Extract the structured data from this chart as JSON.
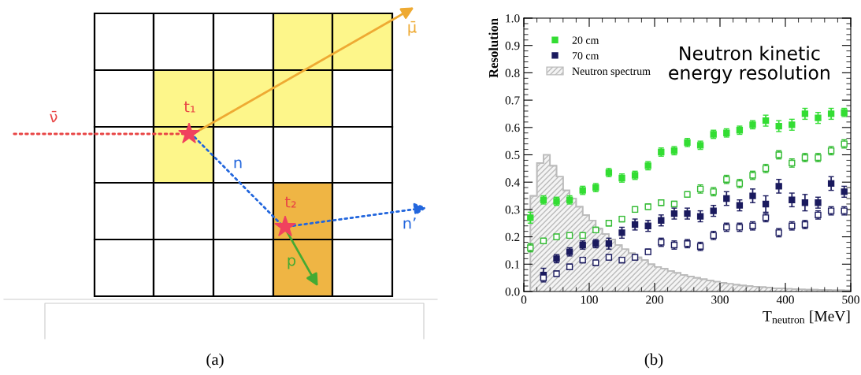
{
  "chart_data": [
    {
      "type": "other",
      "annotations": [
        "ν̄",
        "μ̄",
        "t₁",
        "t₂",
        "n",
        "n’",
        "p",
        "(a)"
      ]
    },
    {
      "type": "scatter",
      "title": "Neutron kinetic\nenergy resolution",
      "xlabel": "T$_{neutron}$ [MeV]",
      "ylabel": "Resolution",
      "annotations": [
        "(b)"
      ],
      "xlim": [
        0,
        500
      ],
      "ylim": [
        0.0,
        1.0
      ],
      "xticks": [
        0,
        100,
        200,
        300,
        400,
        500
      ],
      "yticks": [
        {
          "value": 0,
          "label": "0.0"
        },
        0.1,
        0.2,
        0.3,
        0.4,
        0.5,
        0.6,
        0.7,
        0.8,
        0.9,
        {
          "value": 1,
          "label": "1.0"
        }
      ],
      "legend": "top left",
      "grid": false,
      "marker": "square",
      "series": [
        {
          "name": "20 cm",
          "color": "#33dd33",
          "x": [
            10,
            30,
            50,
            70,
            90,
            110,
            130,
            150,
            170,
            190,
            210,
            230,
            250,
            270,
            290,
            310,
            330,
            350,
            370,
            390,
            410,
            430,
            450,
            470,
            490
          ],
          "values": [
            0.27,
            0.335,
            0.33,
            0.335,
            0.37,
            0.38,
            0.435,
            0.415,
            0.425,
            0.46,
            0.51,
            0.515,
            0.545,
            0.535,
            0.575,
            0.58,
            0.59,
            0.61,
            0.625,
            0.605,
            0.61,
            0.65,
            0.635,
            0.65,
            0.655
          ],
          "errors": [
            0.02,
            0.015,
            0.015,
            0.015,
            0.015,
            0.015,
            0.015,
            0.015,
            0.015,
            0.015,
            0.015,
            0.015,
            0.015,
            0.015,
            0.015,
            0.015,
            0.015,
            0.015,
            0.02,
            0.02,
            0.02,
            0.02,
            0.02,
            0.02,
            0.015
          ]
        },
        {
          "color": "#33bb33",
          "x": [
            10,
            30,
            50,
            70,
            90,
            110,
            130,
            150,
            170,
            190,
            210,
            230,
            250,
            270,
            290,
            310,
            330,
            350,
            370,
            390,
            410,
            430,
            450,
            470,
            490
          ],
          "values": [
            0.16,
            0.185,
            0.2,
            0.205,
            0.205,
            0.225,
            0.25,
            0.265,
            0.3,
            0.31,
            0.325,
            0.32,
            0.355,
            0.375,
            0.365,
            0.41,
            0.395,
            0.425,
            0.45,
            0.5,
            0.47,
            0.49,
            0.49,
            0.515,
            0.54
          ],
          "errors": [
            0.015,
            0.01,
            0.01,
            0.01,
            0.01,
            0.01,
            0.01,
            0.01,
            0.01,
            0.01,
            0.01,
            0.01,
            0.01,
            0.015,
            0.015,
            0.015,
            0.015,
            0.015,
            0.015,
            0.015,
            0.015,
            0.015,
            0.015,
            0.015,
            0.015
          ]
        },
        {
          "name": "70 cm",
          "color": "#1a1a5e",
          "x": [
            30,
            50,
            70,
            90,
            110,
            130,
            150,
            170,
            190,
            210,
            230,
            250,
            270,
            290,
            310,
            330,
            350,
            370,
            390,
            410,
            430,
            450,
            470,
            490
          ],
          "values": [
            0.06,
            0.12,
            0.145,
            0.17,
            0.175,
            0.175,
            0.215,
            0.245,
            0.24,
            0.26,
            0.285,
            0.285,
            0.275,
            0.295,
            0.34,
            0.315,
            0.35,
            0.32,
            0.385,
            0.335,
            0.325,
            0.325,
            0.395,
            0.365
          ],
          "errors": [
            0.025,
            0.015,
            0.015,
            0.015,
            0.015,
            0.02,
            0.02,
            0.02,
            0.02,
            0.02,
            0.02,
            0.02,
            0.02,
            0.02,
            0.025,
            0.02,
            0.025,
            0.03,
            0.025,
            0.025,
            0.03,
            0.02,
            0.025,
            0.02
          ]
        },
        {
          "color": "#1a1a5e",
          "x": [
            30,
            50,
            70,
            90,
            110,
            130,
            150,
            170,
            190,
            210,
            230,
            250,
            270,
            290,
            310,
            330,
            350,
            370,
            390,
            410,
            430,
            450,
            470,
            490
          ],
          "values": [
            0.05,
            0.065,
            0.09,
            0.115,
            0.105,
            0.125,
            0.115,
            0.125,
            0.145,
            0.18,
            0.17,
            0.175,
            0.165,
            0.205,
            0.235,
            0.235,
            0.24,
            0.27,
            0.215,
            0.24,
            0.245,
            0.28,
            0.295,
            0.295
          ],
          "errors": [
            0.01,
            0.01,
            0.01,
            0.01,
            0.01,
            0.01,
            0.01,
            0.01,
            0.01,
            0.015,
            0.015,
            0.015,
            0.015,
            0.015,
            0.015,
            0.015,
            0.015,
            0.015,
            0.015,
            0.015,
            0.015,
            0.015,
            0.015,
            0.015
          ]
        },
        {
          "name": "Neutron spectrum",
          "type": "histogram",
          "color": "#bbbbbb",
          "bins": [
            10,
            20,
            30,
            40,
            50,
            60,
            70,
            80,
            90,
            100,
            110,
            120,
            130,
            140,
            150,
            160,
            170,
            180,
            190,
            200,
            210,
            220,
            230,
            240,
            250,
            260,
            270,
            280,
            290,
            300,
            310,
            320,
            330,
            340,
            350,
            360,
            370,
            380,
            390,
            400,
            410,
            420,
            430,
            440,
            450,
            460,
            470,
            480,
            490,
            500
          ],
          "values": [
            0.35,
            0.47,
            0.5,
            0.46,
            0.42,
            0.37,
            0.34,
            0.31,
            0.28,
            0.26,
            0.23,
            0.21,
            0.19,
            0.17,
            0.155,
            0.14,
            0.125,
            0.115,
            0.1,
            0.09,
            0.083,
            0.075,
            0.068,
            0.06,
            0.055,
            0.05,
            0.045,
            0.04,
            0.036,
            0.032,
            0.028,
            0.025,
            0.022,
            0.02,
            0.018,
            0.016,
            0.014,
            0.012,
            0.011,
            0.01,
            0.009,
            0.008,
            0.007,
            0.007,
            0.006,
            0.006,
            0.005,
            0.005,
            0.004
          ]
        }
      ]
    }
  ]
}
